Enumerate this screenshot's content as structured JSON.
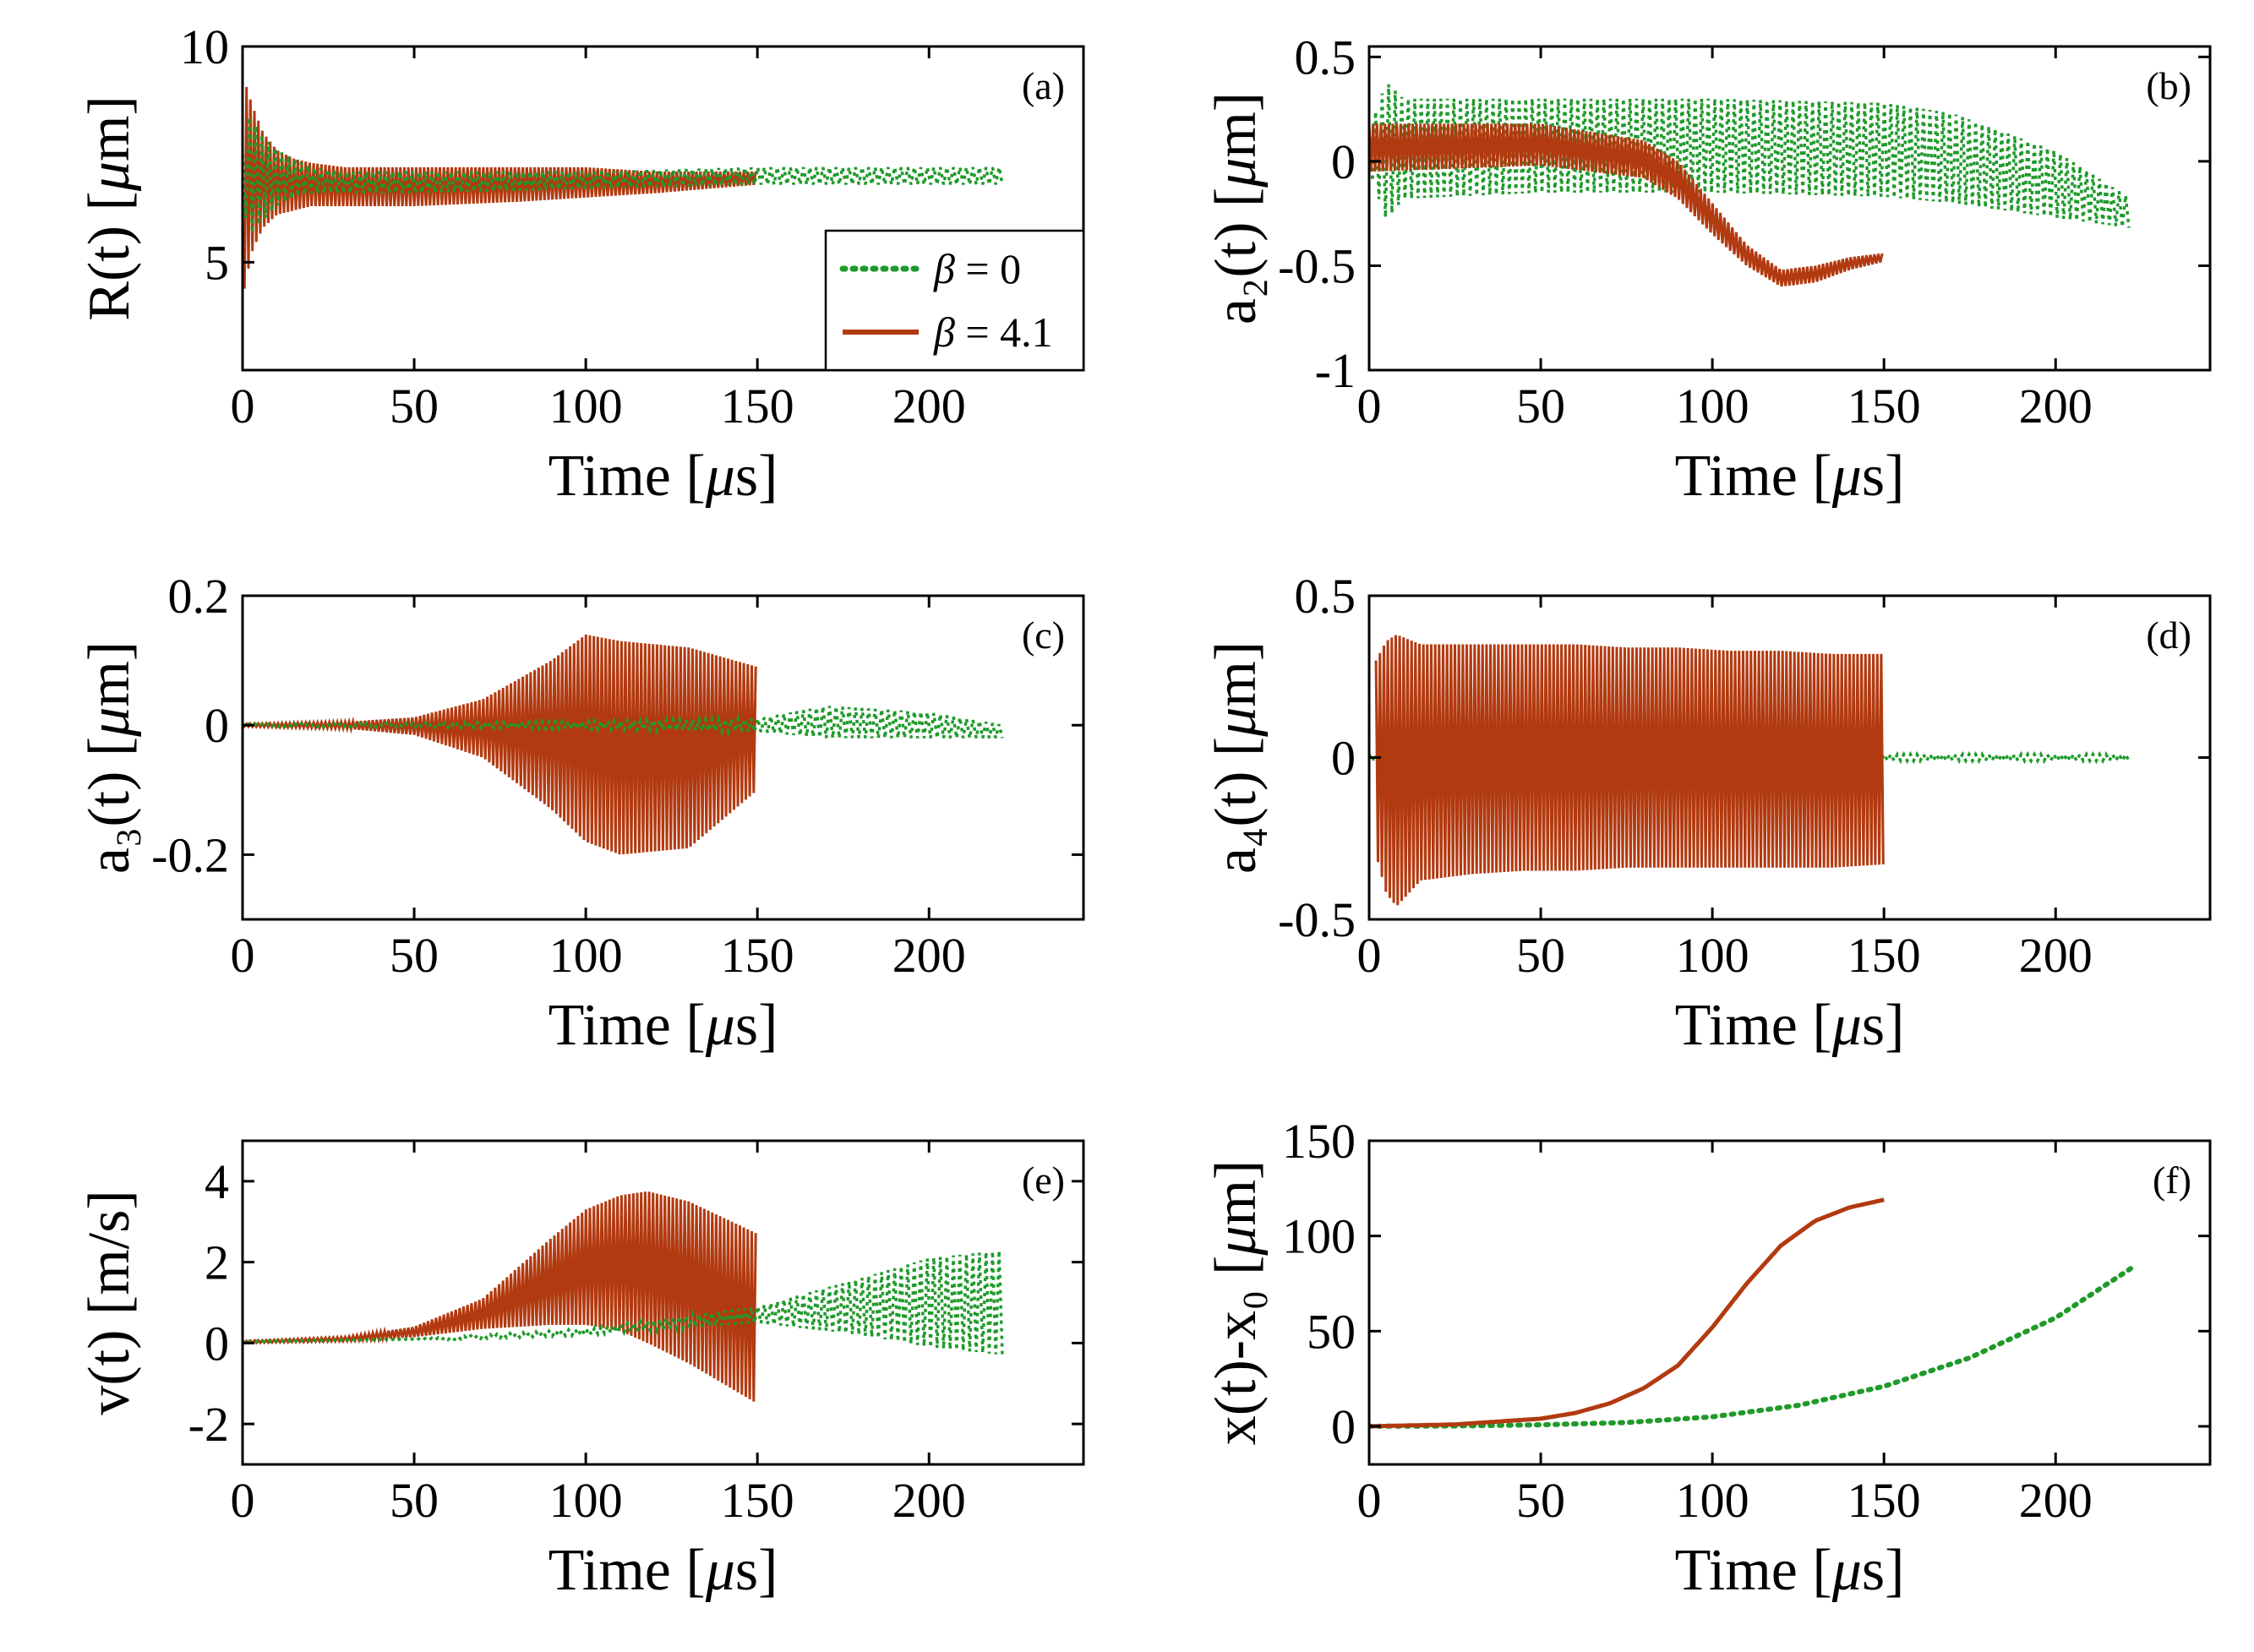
{
  "colors": {
    "beta0": "#1f9a2a",
    "beta41": "#b23a10",
    "axis": "#000000"
  },
  "legend": {
    "entries": [
      {
        "series": "beta0",
        "label": "β = 0",
        "style": "dotted"
      },
      {
        "series": "beta41",
        "label": "β = 4.1",
        "style": "solid"
      }
    ]
  },
  "chart_data": [
    {
      "id": "a",
      "tag": "(a)",
      "type": "line",
      "ylabel": "R(t) [μm]",
      "xlabel": "Time [μs]",
      "xlim": [
        0,
        245
      ],
      "ylim": [
        2.5,
        10
      ],
      "xticks": [
        0,
        50,
        100,
        150,
        200
      ],
      "xtick_labels": [
        "0",
        "50",
        "100",
        "150",
        "200"
      ],
      "yticks": [
        5,
        10
      ],
      "ytick_labels": [
        "5",
        "10"
      ],
      "legend": true,
      "series": [
        {
          "name": "β = 0",
          "key": "beta0",
          "style": "dotted",
          "kind": "envelope",
          "x": [
            0,
            2,
            5,
            10,
            15,
            20,
            30,
            50,
            100,
            150,
            200,
            222
          ],
          "upper": [
            7.5,
            8.4,
            8.0,
            7.6,
            7.4,
            7.2,
            7.1,
            7.1,
            7.1,
            7.2,
            7.2,
            7.2
          ],
          "lower": [
            6.4,
            5.6,
            5.9,
            6.3,
            6.5,
            6.6,
            6.6,
            6.6,
            6.7,
            6.8,
            6.8,
            6.8
          ]
        },
        {
          "name": "β = 4.1",
          "key": "beta41",
          "style": "solid",
          "kind": "envelope",
          "x": [
            0,
            1,
            3,
            6,
            10,
            15,
            20,
            30,
            50,
            80,
            100,
            120,
            150
          ],
          "upper": [
            5.5,
            9.1,
            8.6,
            8.0,
            7.6,
            7.4,
            7.3,
            7.2,
            7.2,
            7.2,
            7.2,
            7.1,
            7.1
          ],
          "lower": [
            4.1,
            4.6,
            5.3,
            5.8,
            6.1,
            6.2,
            6.3,
            6.3,
            6.3,
            6.4,
            6.5,
            6.6,
            6.8
          ]
        }
      ]
    },
    {
      "id": "b",
      "tag": "(b)",
      "type": "line",
      "ylabel": "a₂(t) [μm]",
      "xlabel": "Time [μs]",
      "xlim": [
        0,
        245
      ],
      "ylim": [
        -1,
        0.55
      ],
      "xticks": [
        0,
        50,
        100,
        150,
        200
      ],
      "xtick_labels": [
        "0",
        "50",
        "100",
        "150",
        "200"
      ],
      "yticks": [
        -1,
        -0.5,
        0,
        0.5
      ],
      "ytick_labels": [
        "-1",
        "-0.5",
        "0",
        "0.5"
      ],
      "series": [
        {
          "name": "β = 0",
          "key": "beta0",
          "style": "dotted",
          "kind": "envelope",
          "x": [
            0,
            5,
            10,
            50,
            100,
            150,
            170,
            200,
            222
          ],
          "upper": [
            0.15,
            0.38,
            0.3,
            0.3,
            0.3,
            0.28,
            0.23,
            0.05,
            -0.18
          ],
          "lower": [
            -0.05,
            -0.28,
            -0.18,
            -0.15,
            -0.15,
            -0.17,
            -0.2,
            -0.27,
            -0.32
          ]
        },
        {
          "name": "β = 4.1",
          "key": "beta41",
          "style": "solid",
          "kind": "envelope",
          "x": [
            0,
            50,
            80,
            90,
            100,
            110,
            120,
            130,
            140,
            150
          ],
          "upper": [
            0.18,
            0.18,
            0.1,
            0.0,
            -0.2,
            -0.4,
            -0.52,
            -0.5,
            -0.46,
            -0.44
          ],
          "lower": [
            -0.05,
            -0.02,
            -0.08,
            -0.18,
            -0.35,
            -0.5,
            -0.6,
            -0.58,
            -0.52,
            -0.48
          ]
        }
      ]
    },
    {
      "id": "c",
      "tag": "(c)",
      "type": "line",
      "ylabel": "a₃(t) [μm]",
      "xlabel": "Time [μs]",
      "xlim": [
        0,
        245
      ],
      "ylim": [
        -0.3,
        0.2
      ],
      "xticks": [
        0,
        50,
        100,
        150,
        200
      ],
      "xtick_labels": [
        "0",
        "50",
        "100",
        "150",
        "200"
      ],
      "yticks": [
        -0.2,
        0,
        0.2
      ],
      "ytick_labels": [
        "-0.2",
        "0",
        "0.2"
      ],
      "series": [
        {
          "name": "β = 0",
          "key": "beta0",
          "style": "dotted",
          "kind": "envelope",
          "x": [
            0,
            50,
            100,
            150,
            170,
            200,
            222
          ],
          "upper": [
            0.002,
            0.003,
            0.006,
            0.01,
            0.03,
            0.02,
            0.0
          ],
          "lower": [
            -0.002,
            -0.003,
            -0.006,
            -0.01,
            -0.02,
            -0.02,
            -0.02
          ]
        },
        {
          "name": "β = 4.1",
          "key": "beta41",
          "style": "solid",
          "kind": "envelope",
          "x": [
            0,
            30,
            50,
            70,
            90,
            100,
            110,
            130,
            150
          ],
          "upper": [
            0.002,
            0.005,
            0.012,
            0.04,
            0.1,
            0.14,
            0.13,
            0.12,
            0.09
          ],
          "lower": [
            -0.002,
            -0.005,
            -0.015,
            -0.05,
            -0.13,
            -0.18,
            -0.2,
            -0.19,
            -0.1
          ]
        }
      ]
    },
    {
      "id": "d",
      "tag": "(d)",
      "type": "line",
      "ylabel": "a₄(t) [μm]",
      "xlabel": "Time [μs]",
      "xlim": [
        0,
        245
      ],
      "ylim": [
        -0.5,
        0.5
      ],
      "xticks": [
        0,
        50,
        100,
        150,
        200
      ],
      "xtick_labels": [
        "0",
        "50",
        "100",
        "150",
        "200"
      ],
      "yticks": [
        -0.5,
        0,
        0.5
      ],
      "ytick_labels": [
        "-0.5",
        "0",
        "0.5"
      ],
      "series": [
        {
          "name": "β = 0",
          "key": "beta0",
          "style": "dotted",
          "kind": "envelope",
          "x": [
            0,
            100,
            150,
            222
          ],
          "upper": [
            0.01,
            0.01,
            0.01,
            0.01
          ],
          "lower": [
            -0.01,
            -0.01,
            -0.01,
            -0.01
          ]
        },
        {
          "name": "β = 4.1",
          "key": "beta41",
          "style": "solid",
          "kind": "envelope",
          "x": [
            2,
            5,
            8,
            15,
            30,
            45,
            60,
            75,
            90,
            105,
            120,
            135,
            150
          ],
          "upper": [
            0.3,
            0.36,
            0.38,
            0.35,
            0.35,
            0.35,
            0.35,
            0.34,
            0.34,
            0.33,
            0.33,
            0.32,
            0.32
          ],
          "lower": [
            -0.3,
            -0.42,
            -0.46,
            -0.38,
            -0.36,
            -0.35,
            -0.35,
            -0.34,
            -0.34,
            -0.34,
            -0.34,
            -0.34,
            -0.33
          ]
        }
      ]
    },
    {
      "id": "e",
      "tag": "(e)",
      "type": "line",
      "ylabel": "v(t) [m/s]",
      "xlabel": "Time [μs]",
      "xlim": [
        0,
        245
      ],
      "ylim": [
        -3,
        5
      ],
      "xticks": [
        0,
        50,
        100,
        150,
        200
      ],
      "xtick_labels": [
        "0",
        "50",
        "100",
        "150",
        "200"
      ],
      "yticks": [
        -2,
        0,
        2,
        4
      ],
      "ytick_labels": [
        "-2",
        "0",
        "2",
        "4"
      ],
      "series": [
        {
          "name": "β = 0",
          "key": "beta0",
          "style": "dotted",
          "kind": "envelope",
          "x": [
            0,
            50,
            100,
            150,
            180,
            200,
            222
          ],
          "upper": [
            0.05,
            0.1,
            0.35,
            0.9,
            1.6,
            2.1,
            2.3
          ],
          "lower": [
            0.0,
            0.05,
            0.2,
            0.5,
            0.2,
            -0.1,
            -0.3
          ]
        },
        {
          "name": "β = 4.1",
          "key": "beta41",
          "style": "solid",
          "kind": "envelope",
          "x": [
            0,
            30,
            50,
            70,
            90,
            100,
            110,
            118,
            130,
            140,
            150
          ],
          "upper": [
            0.05,
            0.15,
            0.4,
            1.1,
            2.6,
            3.3,
            3.65,
            3.75,
            3.5,
            3.1,
            2.7
          ],
          "lower": [
            0.0,
            0.05,
            0.15,
            0.35,
            0.45,
            0.45,
            0.3,
            0.0,
            -0.5,
            -1.0,
            -1.5
          ]
        }
      ]
    },
    {
      "id": "f",
      "tag": "(f)",
      "type": "line",
      "ylabel": "x(t)-x₀ [μm]",
      "xlabel": "Time [μs]",
      "xlim": [
        0,
        245
      ],
      "ylim": [
        -20,
        150
      ],
      "xticks": [
        0,
        50,
        100,
        150,
        200
      ],
      "xtick_labels": [
        "0",
        "50",
        "100",
        "150",
        "200"
      ],
      "yticks": [
        0,
        50,
        100,
        150
      ],
      "ytick_labels": [
        "0",
        "50",
        "100",
        "150"
      ],
      "series": [
        {
          "name": "β = 0",
          "key": "beta0",
          "style": "dotted",
          "kind": "line",
          "x": [
            0,
            25,
            50,
            75,
            100,
            125,
            150,
            175,
            200,
            222
          ],
          "y": [
            0,
            0.2,
            0.8,
            2,
            5,
            11,
            21,
            36,
            57,
            83
          ]
        },
        {
          "name": "β = 4.1",
          "key": "beta41",
          "style": "solid",
          "kind": "line",
          "x": [
            0,
            25,
            50,
            60,
            70,
            80,
            90,
            100,
            110,
            120,
            130,
            140,
            150
          ],
          "y": [
            0,
            1,
            4,
            7,
            12,
            20,
            32,
            52,
            75,
            95,
            108,
            115,
            119
          ]
        }
      ]
    }
  ]
}
